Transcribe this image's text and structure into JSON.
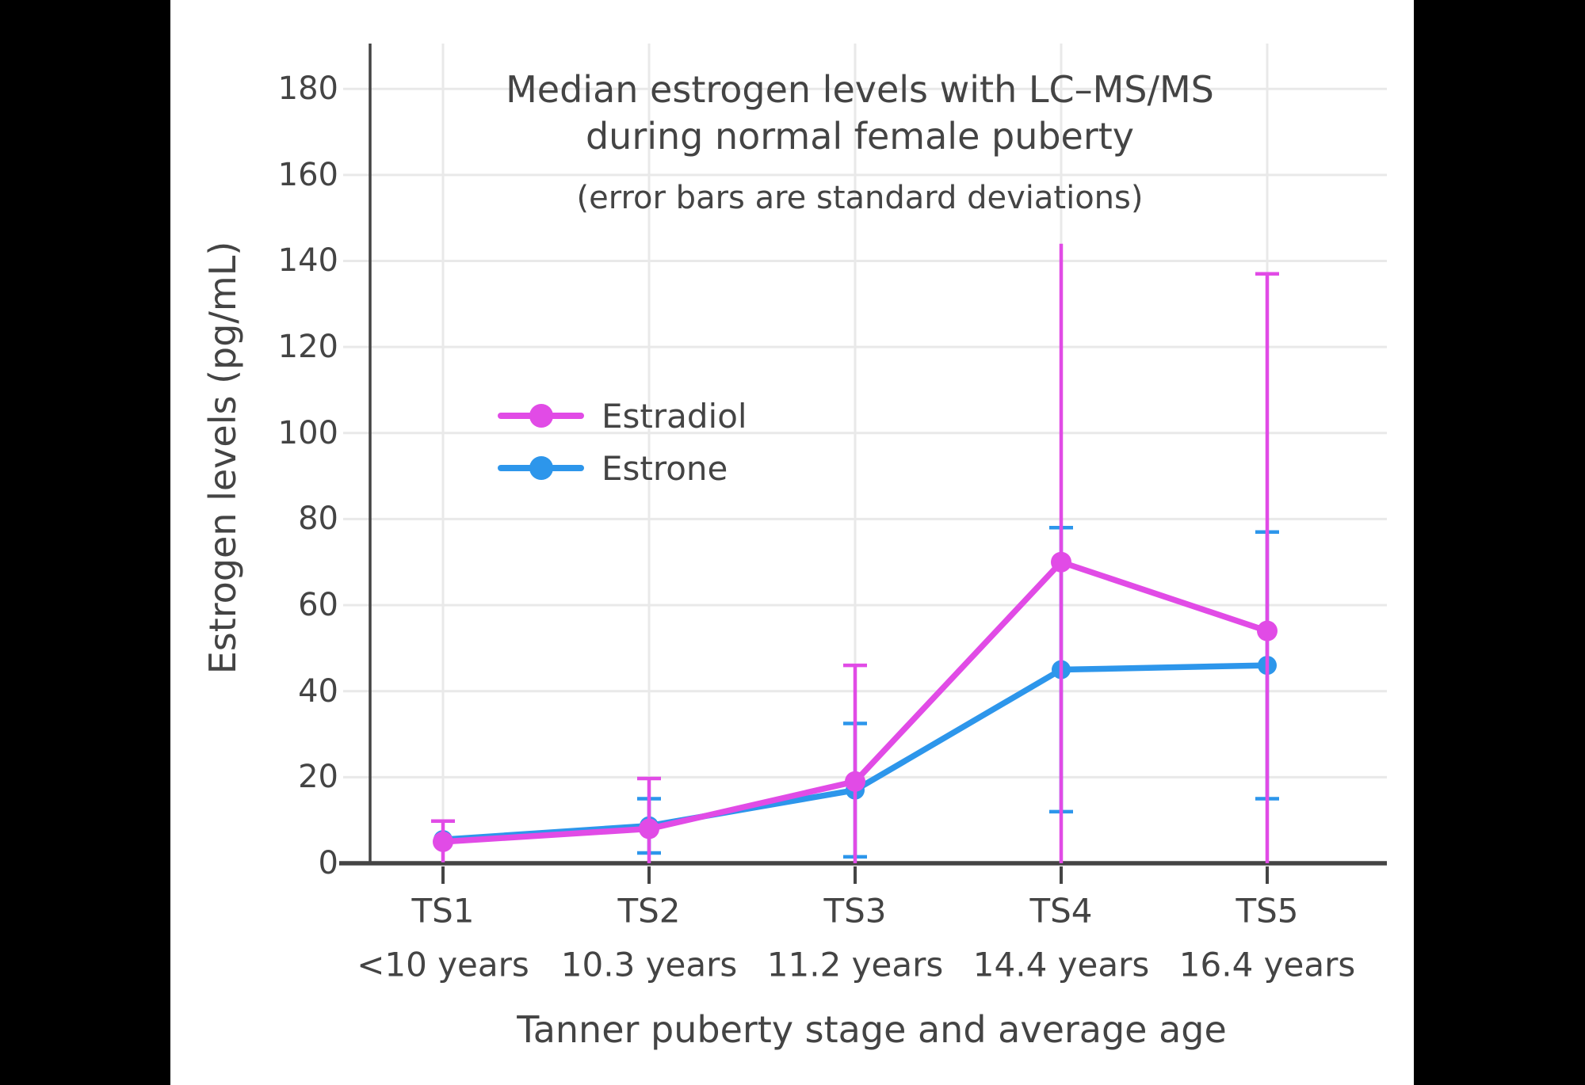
{
  "window": {
    "background": "#000000",
    "panel_background": "#ffffff"
  },
  "title": {
    "line1": "Median estrogen levels with LC–MS/MS",
    "line2": "during normal female puberty",
    "subtitle": "(error bars are standard deviations)"
  },
  "legend": {
    "items": [
      {
        "label": "Estradiol",
        "color": "#e14be6"
      },
      {
        "label": "Estrone",
        "color": "#2d96eb"
      }
    ]
  },
  "colors": {
    "text": "#444444",
    "axis": "#444444",
    "grid": "#e9e9e9",
    "estradiol": "#e14be6",
    "estrone": "#2d96eb"
  },
  "chart_data": {
    "type": "line",
    "title": "Median estrogen levels with LC–MS/MS during normal female puberty",
    "subtitle": "(error bars are standard deviations)",
    "xlabel": "Tanner puberty stage and average age",
    "ylabel": "Estrogen levels (pg/mL)",
    "ylim": [
      0,
      190
    ],
    "yticks": [
      0,
      20,
      40,
      60,
      80,
      100,
      120,
      140,
      160,
      180
    ],
    "grid": true,
    "legend_position": "inside-left-middle",
    "categories": [
      "TS1",
      "TS2",
      "TS3",
      "TS4",
      "TS5"
    ],
    "category_ages": [
      "<10 years",
      "10.3 years",
      "11.2 years",
      "14.4 years",
      "16.4 years"
    ],
    "series": [
      {
        "name": "Estradiol",
        "color": "#e14be6",
        "values": [
          5,
          8,
          19,
          70,
          54
        ],
        "sd": [
          4.8,
          11.7,
          27,
          74,
          83
        ],
        "top_caps": [
          true,
          true,
          true,
          false,
          true
        ]
      },
      {
        "name": "Estrone",
        "color": "#2d96eb",
        "values": [
          5.5,
          8.7,
          17,
          45,
          46
        ],
        "sd": [
          null,
          6.3,
          15.5,
          33,
          31
        ],
        "top_caps": [
          true,
          true,
          true,
          true,
          true
        ]
      }
    ]
  }
}
